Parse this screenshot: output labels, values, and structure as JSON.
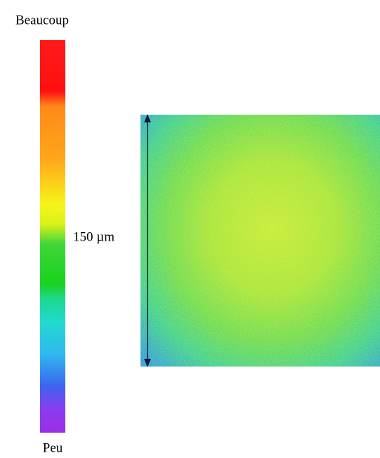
{
  "colorbar": {
    "top_label": "Beaucoup",
    "bottom_label": "Peu"
  },
  "scale_bar": {
    "label": "150 µm"
  }
}
